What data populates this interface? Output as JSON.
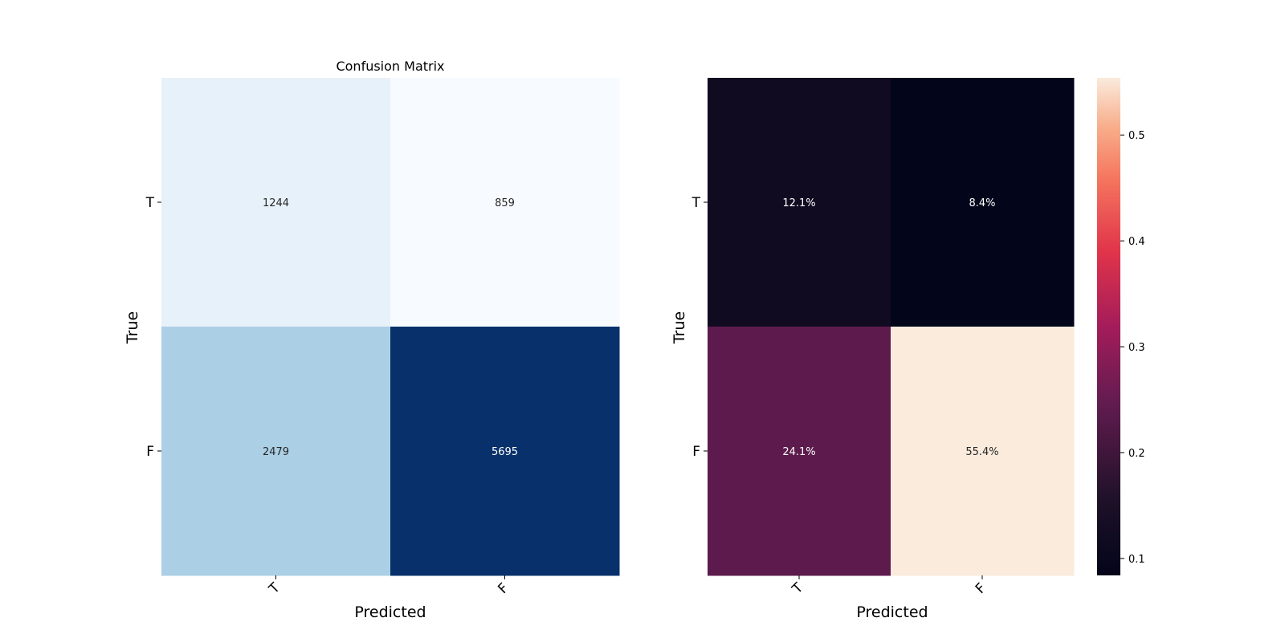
{
  "chart_data": [
    {
      "type": "heatmap",
      "title": "Confusion Matrix",
      "xlabel": "Predicted",
      "ylabel": "True",
      "x_categories": [
        "T",
        "F"
      ],
      "y_categories": [
        "T",
        "F"
      ],
      "values": [
        [
          1244,
          859
        ],
        [
          2479,
          5695
        ]
      ],
      "cell_labels": [
        [
          "1244",
          "859"
        ],
        [
          "2479",
          "5695"
        ]
      ],
      "colormap": "Blues",
      "colorbar": false,
      "grid": false
    },
    {
      "type": "heatmap",
      "title": "",
      "xlabel": "Predicted",
      "ylabel": "True",
      "x_categories": [
        "T",
        "F"
      ],
      "y_categories": [
        "T",
        "F"
      ],
      "values": [
        [
          0.121,
          0.084
        ],
        [
          0.241,
          0.554
        ]
      ],
      "cell_labels": [
        [
          "12.1%",
          "8.4%"
        ],
        [
          "24.1%",
          "55.4%"
        ]
      ],
      "colormap": "rocket",
      "colorbar": true,
      "colorbar_range": [
        0.084,
        0.554
      ],
      "colorbar_ticks": [
        0.1,
        0.2,
        0.3,
        0.4,
        0.5
      ],
      "colorbar_tick_labels": [
        "0.1",
        "0.2",
        "0.3",
        "0.4",
        "0.5"
      ],
      "grid": false
    }
  ]
}
